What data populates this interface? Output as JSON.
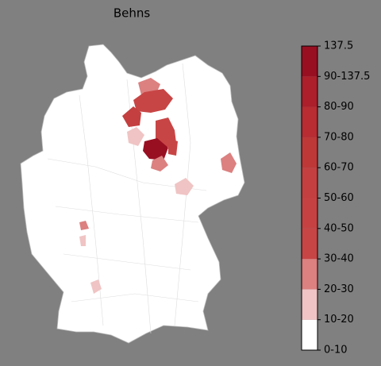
{
  "title": "Behns",
  "colorbar": {
    "labels": [
      "0-10",
      "10-20",
      "20-30",
      "30-40",
      "40-50",
      "50-60",
      "60-70",
      "70-80",
      "80-90",
      "90-137.5",
      "137.5"
    ],
    "colors": [
      "#ffffff",
      "#f0c4c4",
      "#dc8080",
      "#c84545",
      "#c64242",
      "#c43f3f",
      "#bf3838",
      "#b82c32",
      "#ac1f2b",
      "#990f22"
    ]
  }
}
